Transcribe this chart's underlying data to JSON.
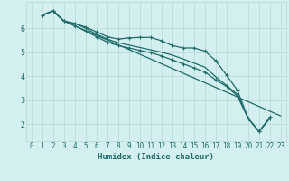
{
  "xlabel": "Humidex (Indice chaleur)",
  "bg_color": "#d4efef",
  "grid_color": "#b8d8d8",
  "line_color": "#1e6b6b",
  "xlim": [
    -0.5,
    23.5
  ],
  "ylim": [
    1.3,
    7.1
  ],
  "yticks": [
    2,
    3,
    4,
    5,
    6
  ],
  "xticks": [
    0,
    1,
    2,
    3,
    4,
    5,
    6,
    7,
    8,
    9,
    10,
    11,
    12,
    13,
    14,
    15,
    16,
    17,
    18,
    19,
    20,
    21,
    22,
    23
  ],
  "lines": [
    {
      "x": [
        1,
        2,
        3,
        4,
        5,
        6,
        7,
        8,
        9,
        10,
        11,
        12,
        13,
        14,
        15,
        16,
        17,
        18,
        19,
        20,
        21,
        22,
        23
      ],
      "y": [
        6.55,
        6.72,
        6.3,
        6.2,
        6.05,
        5.85,
        5.65,
        5.55,
        5.6,
        5.62,
        5.62,
        5.48,
        5.28,
        5.18,
        5.18,
        5.05,
        4.65,
        4.05,
        3.42,
        2.25,
        1.7,
        2.3,
        null
      ],
      "marker": true
    },
    {
      "x": [
        1,
        2,
        3,
        4,
        5,
        6,
        7,
        8,
        9,
        10,
        11,
        12,
        13,
        14,
        15,
        16,
        17,
        18,
        19,
        20,
        21,
        22,
        23
      ],
      "y": [
        6.55,
        6.72,
        6.3,
        6.2,
        6.0,
        5.75,
        5.55,
        5.4,
        5.3,
        5.2,
        5.1,
        5.0,
        4.88,
        4.72,
        4.55,
        4.38,
        3.98,
        3.62,
        3.25,
        2.25,
        1.7,
        2.25,
        null
      ],
      "marker": false
    },
    {
      "x": [
        1,
        2,
        3,
        4,
        5,
        6,
        7,
        8,
        9,
        10,
        11,
        12,
        13,
        14,
        15,
        16,
        17,
        18,
        19,
        20,
        21,
        22,
        23
      ],
      "y": [
        6.55,
        6.72,
        6.3,
        6.1,
        5.88,
        5.65,
        5.42,
        5.28,
        5.18,
        5.08,
        4.98,
        4.85,
        4.68,
        4.52,
        4.35,
        4.18,
        3.85,
        3.58,
        3.18,
        2.25,
        1.7,
        2.25,
        null
      ],
      "marker": true
    },
    {
      "x": [
        1,
        2,
        3,
        23
      ],
      "y": [
        6.55,
        6.72,
        6.3,
        2.35
      ],
      "marker": false
    }
  ],
  "xlabel_fontsize": 6.5,
  "tick_fontsize": 5.5,
  "linewidth": 0.9,
  "markersize": 2.2
}
